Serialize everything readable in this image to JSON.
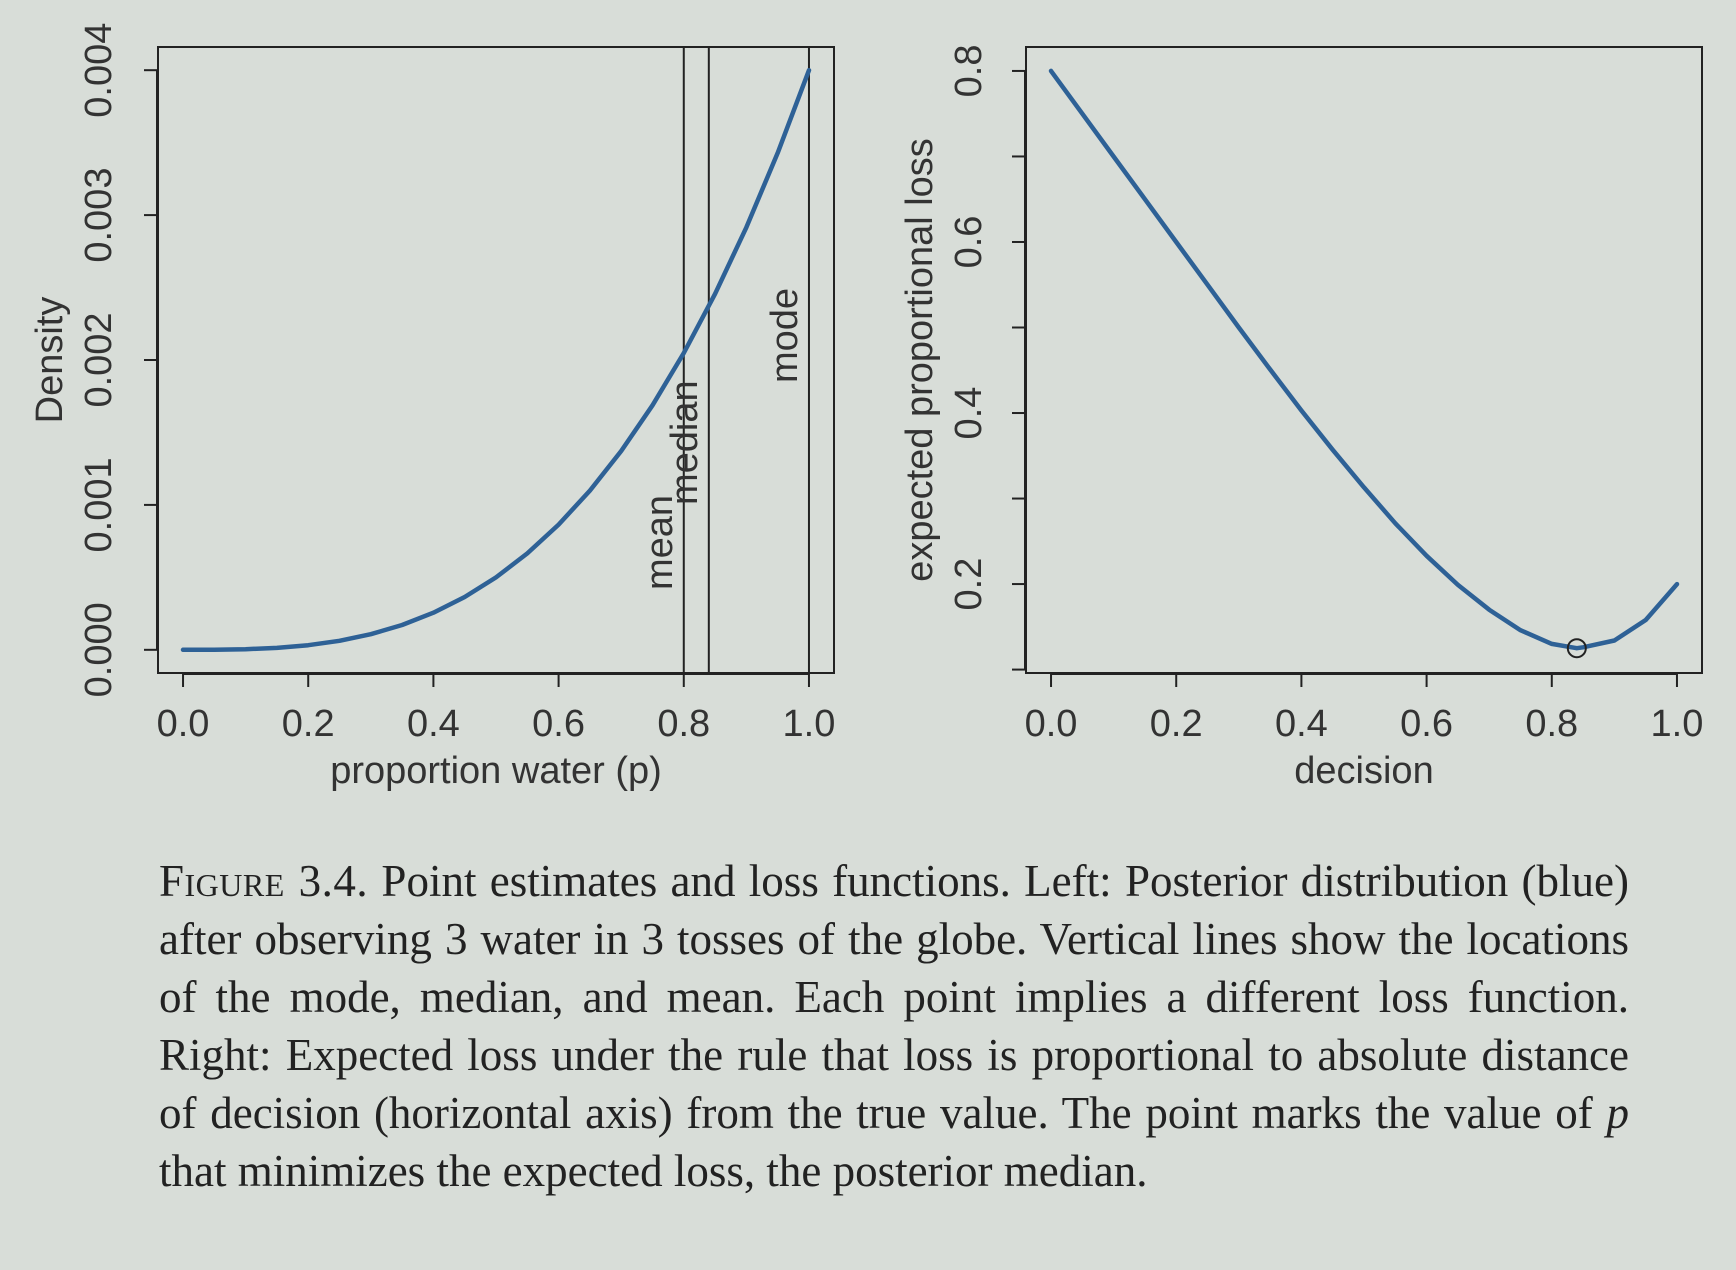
{
  "colors": {
    "background": "#d8ddd8",
    "curve": "#2e6196",
    "axis": "#222222",
    "text": "#333333"
  },
  "chart_data": [
    {
      "type": "line",
      "title": "",
      "xlabel": "proportion water (p)",
      "ylabel": "Density",
      "xlim": [
        -0.04,
        1.04
      ],
      "ylim": [
        -0.00016,
        0.00416
      ],
      "xticks": [
        0.0,
        0.2,
        0.4,
        0.6,
        0.8,
        1.0
      ],
      "xtick_labels": [
        "0.0",
        "0.2",
        "0.4",
        "0.6",
        "0.8",
        "1.0"
      ],
      "yticks": [
        0.0,
        0.001,
        0.002,
        0.003,
        0.004
      ],
      "ytick_labels": [
        "0.000",
        "0.001",
        "0.002",
        "0.003",
        "0.004"
      ],
      "grid": false,
      "series": [
        {
          "x": [
            0.0,
            0.05,
            0.1,
            0.15,
            0.2,
            0.25,
            0.3,
            0.35,
            0.4,
            0.45,
            0.5,
            0.55,
            0.6,
            0.65,
            0.7,
            0.75,
            0.8,
            0.85,
            0.9,
            0.95,
            1.0
          ],
          "y": [
            0.0,
            5e-07,
            4e-06,
            1.35e-05,
            3.2e-05,
            6.25e-05,
            0.000108,
            0.0001715,
            0.000256,
            0.0003645,
            0.0005,
            0.0006655,
            0.000864,
            0.0010985,
            0.001372,
            0.0016875,
            0.002048,
            0.0024565,
            0.002916,
            0.0034295,
            0.004
          ],
          "color": "#2e6196"
        }
      ],
      "vlines": [
        {
          "label": "mean",
          "x": 0.8
        },
        {
          "label": "median",
          "x": 0.84
        },
        {
          "label": "mode",
          "x": 1.0
        }
      ]
    },
    {
      "type": "line",
      "title": "",
      "xlabel": "decision",
      "ylabel": "expected proportional loss",
      "xlim": [
        -0.04,
        1.04
      ],
      "ylim": [
        0.096,
        0.828
      ],
      "xticks": [
        0.0,
        0.2,
        0.4,
        0.6,
        0.8,
        1.0
      ],
      "xtick_labels": [
        "0.0",
        "0.2",
        "0.4",
        "0.6",
        "0.8",
        "1.0"
      ],
      "yticks": [
        0.2,
        0.4,
        0.6,
        0.8
      ],
      "ytick_labels": [
        "0.2",
        "0.4",
        "0.6",
        "0.8"
      ],
      "y_minor_ticks": [
        0.1,
        0.3,
        0.5,
        0.7
      ],
      "grid": false,
      "series": [
        {
          "x": [
            0.0,
            0.05,
            0.1,
            0.15,
            0.2,
            0.25,
            0.3,
            0.35,
            0.4,
            0.45,
            0.5,
            0.55,
            0.6,
            0.65,
            0.7,
            0.75,
            0.8,
            0.84,
            0.85,
            0.9,
            0.95,
            1.0
          ],
          "y": [
            0.8,
            0.75,
            0.7,
            0.65,
            0.6,
            0.55,
            0.5,
            0.451,
            0.403,
            0.357,
            0.313,
            0.271,
            0.233,
            0.199,
            0.17,
            0.146,
            0.13,
            0.125,
            0.126,
            0.134,
            0.158,
            0.2
          ],
          "color": "#2e6196"
        }
      ],
      "points": [
        {
          "x": 0.84,
          "y": 0.125
        }
      ]
    }
  ],
  "caption": {
    "label": "Figure 3.4.",
    "text_before_p": "Point estimates and loss functions. Left: Posterior distribution (blue) after observing 3 water in 3 tosses of the globe. Vertical lines show the locations of the mode, median, and mean. Each point implies a different loss function. Right: Expected loss under the rule that loss is proportional to absolute distance of decision (horizontal axis) from the true value. The point marks the value of",
    "p_symbol": "p",
    "text_after_p": "that minimizes the expected loss, the posterior median."
  }
}
